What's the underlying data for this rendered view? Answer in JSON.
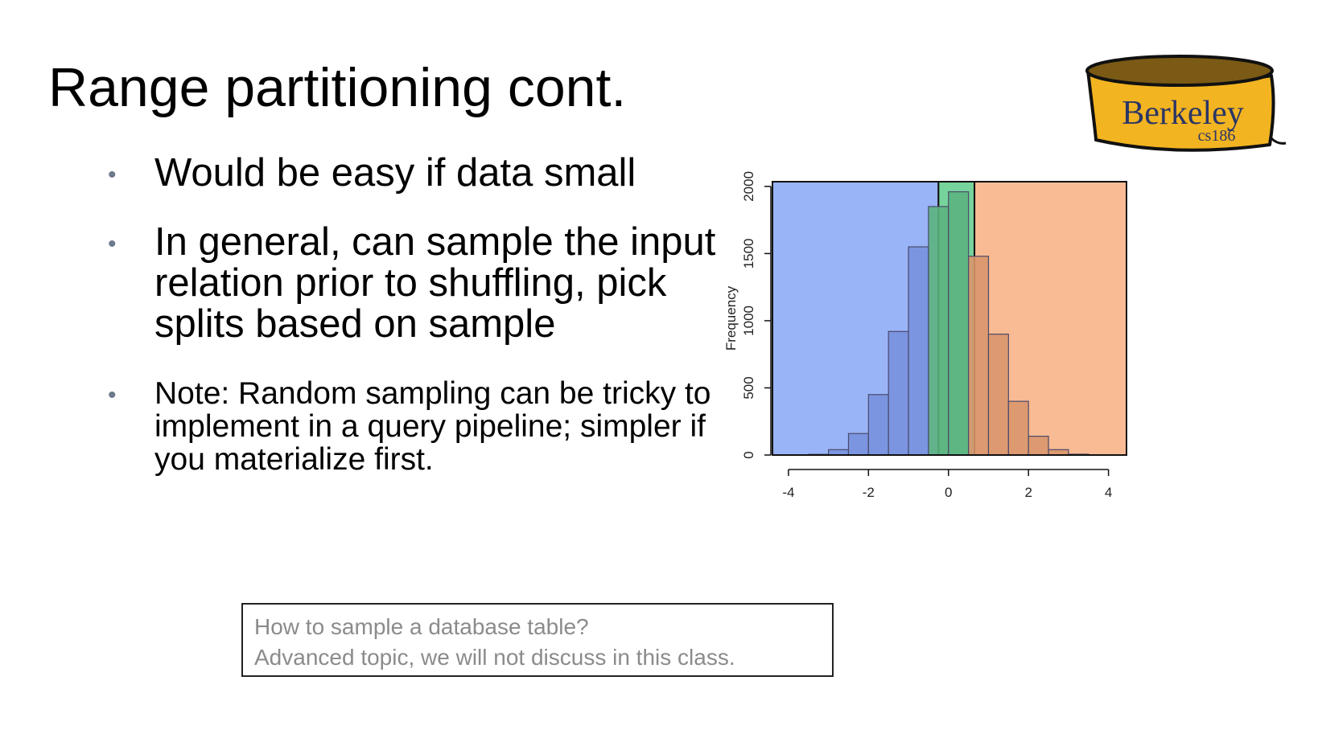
{
  "slide": {
    "title": "Range partitioning cont."
  },
  "bullets": [
    {
      "text": "Would be easy if data small"
    },
    {
      "text": "In general, can sample the input relation prior to shuffling, pick splits based on sample"
    },
    {
      "text": "Note: Random sampling can be tricky to implement in a query pipeline; simpler if you materialize first."
    }
  ],
  "note_box": {
    "line1": "How to sample a database table?",
    "line2": "Advanced topic, we will not discuss in this class."
  },
  "logo": {
    "name": "Berkeley",
    "course": "cs186",
    "icon": "berkeley-bucket-logo",
    "colors": {
      "body": "#f2b420",
      "rim": "#7a5a14",
      "text": "#2b3566"
    }
  },
  "chart_data": {
    "type": "bar",
    "title": "",
    "xlabel": "",
    "ylabel": "Frequency",
    "xlim": [
      -4,
      4
    ],
    "ylim": [
      0,
      2000
    ],
    "x_ticks": [
      -4,
      -2,
      0,
      2,
      4
    ],
    "y_ticks": [
      0,
      500,
      1000,
      1500,
      2000
    ],
    "bins": [
      {
        "from": -3.5,
        "to": -3.0,
        "value": 5
      },
      {
        "from": -3.0,
        "to": -2.5,
        "value": 40
      },
      {
        "from": -2.5,
        "to": -2.0,
        "value": 160
      },
      {
        "from": -2.0,
        "to": -1.5,
        "value": 450
      },
      {
        "from": -1.5,
        "to": -1.0,
        "value": 920
      },
      {
        "from": -1.0,
        "to": -0.5,
        "value": 1550
      },
      {
        "from": -0.5,
        "to": 0.0,
        "value": 1850
      },
      {
        "from": 0.0,
        "to": 0.5,
        "value": 1960
      },
      {
        "from": 0.5,
        "to": 1.0,
        "value": 1480
      },
      {
        "from": 1.0,
        "to": 1.5,
        "value": 900
      },
      {
        "from": 1.5,
        "to": 2.0,
        "value": 400
      },
      {
        "from": 2.0,
        "to": 2.5,
        "value": 140
      },
      {
        "from": 2.5,
        "to": 3.0,
        "value": 40
      },
      {
        "from": 3.0,
        "to": 3.5,
        "value": 6
      },
      {
        "from": 3.5,
        "to": 4.0,
        "value": 2
      }
    ],
    "partitions": [
      {
        "from": -4.4,
        "to": -0.25,
        "color": "#9ab4f8",
        "bar_color": "#7891de"
      },
      {
        "from": -0.25,
        "to": 0.65,
        "color": "#76d39c",
        "bar_color": "#5cb380"
      },
      {
        "from": 0.65,
        "to": 4.45,
        "color": "#f9bb94",
        "bar_color": "#d9966c"
      }
    ]
  }
}
